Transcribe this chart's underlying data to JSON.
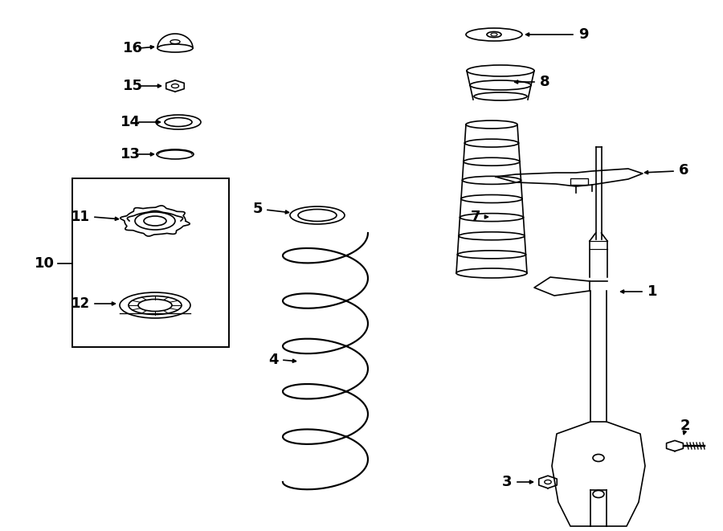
{
  "bg_color": "#ffffff",
  "line_color": "#000000",
  "lw": 1.2,
  "fig_width": 9.0,
  "fig_height": 6.61,
  "dpi": 100
}
